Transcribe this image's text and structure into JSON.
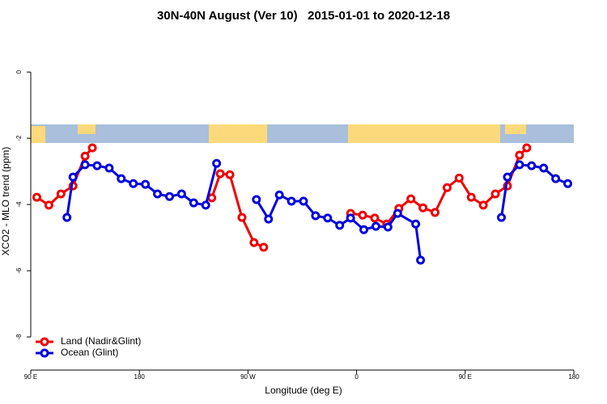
{
  "chart_data": {
    "type": "line",
    "title": "30N-40N August (Ver 10)   2015-01-01 to 2020-12-18",
    "xlabel": "Longitude (deg E)",
    "ylabel": "XCO2 - MLO trend (ppm)",
    "xlim": [
      90,
      540
    ],
    "ylim": [
      -9,
      1.2
    ],
    "xticks": [
      {
        "value": 90,
        "label": "90 E"
      },
      {
        "value": 180,
        "label": "180"
      },
      {
        "value": 270,
        "label": "90 W"
      },
      {
        "value": 360,
        "label": "0"
      },
      {
        "value": 450,
        "label": "90 E"
      },
      {
        "value": 540,
        "label": "180"
      }
    ],
    "yticks": [
      0,
      -2,
      -4,
      -6,
      -8
    ],
    "legend": "bottom-left",
    "series": [
      {
        "name": "Land (Nadir&Glint)",
        "color": "#ee0000",
        "x": [
          95,
          105,
          115,
          125,
          135,
          141,
          null,
          240,
          247,
          255,
          265,
          275,
          283,
          null,
          355,
          365,
          375,
          385,
          395,
          405,
          415,
          425,
          435,
          445,
          455,
          465,
          475,
          485,
          495,
          501
        ],
        "values": [
          -3.78,
          -4.02,
          -3.68,
          -3.44,
          -2.54,
          -2.29,
          null,
          -3.8,
          -3.07,
          -3.1,
          -4.39,
          -5.15,
          -5.29,
          null,
          -4.27,
          -4.32,
          -4.41,
          -4.59,
          -4.12,
          -3.83,
          -4.1,
          -4.24,
          -3.49,
          -3.2,
          -3.78,
          -4.02,
          -3.68,
          -3.44,
          -2.51,
          -2.29
        ]
      },
      {
        "name": "Ocean (Glint)",
        "color": "#0000dd",
        "x": [
          120,
          125,
          135,
          145,
          155,
          165,
          175,
          185,
          195,
          205,
          215,
          225,
          235,
          244,
          null,
          277,
          287,
          296,
          306,
          316,
          326,
          336,
          346,
          355,
          366,
          376,
          386,
          394,
          409,
          413,
          null,
          480,
          485,
          495,
          505,
          515,
          525,
          535
        ],
        "values": [
          -4.39,
          -3.17,
          -2.8,
          -2.83,
          -2.9,
          -3.22,
          -3.37,
          -3.39,
          -3.68,
          -3.76,
          -3.68,
          -3.95,
          -4.02,
          -2.76,
          null,
          -3.85,
          -4.44,
          -3.71,
          -3.9,
          -3.9,
          -4.34,
          -4.41,
          -4.63,
          -4.41,
          -4.76,
          -4.66,
          -4.68,
          -4.27,
          -4.59,
          -5.68,
          null,
          -4.39,
          -3.17,
          -2.8,
          -2.83,
          -2.9,
          -3.22,
          -3.37
        ]
      }
    ]
  }
}
